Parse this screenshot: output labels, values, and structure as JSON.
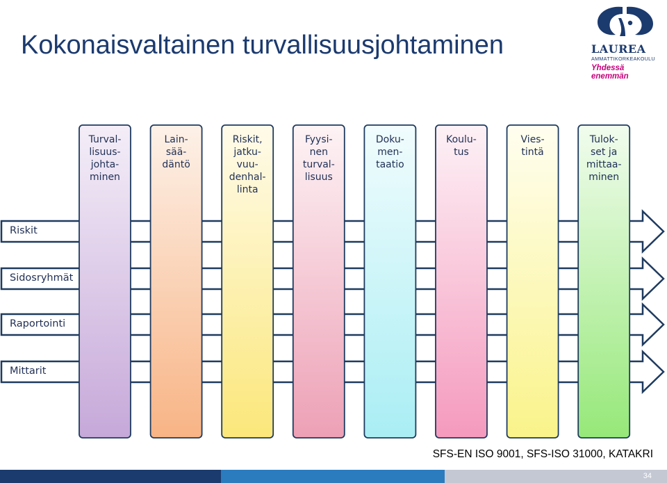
{
  "slide": {
    "title": "Kokonaisvaltainen turvallisuusjohtaminen",
    "footer_reference": "SFS-EN ISO 9001, SFS-ISO 31000, KATAKRI",
    "page_number": "34"
  },
  "logo": {
    "name": "LAUREA",
    "subtitle": "AMMATTIKORKEAKOULU",
    "slogan": "Yhdessä enemmän",
    "primary_color": "#1b3a6e",
    "slogan_color": "#c5007a"
  },
  "columns": [
    {
      "label_lines": [
        "Turval-",
        "lisuus-",
        "johta-",
        "minen"
      ],
      "color_top": "#f4eef8",
      "color_bottom": "#c6a8d9"
    },
    {
      "label_lines": [
        "Lain-",
        "sää-",
        "däntö"
      ],
      "color_top": "#fdf1e8",
      "color_bottom": "#f8b485"
    },
    {
      "label_lines": [
        "Riskit,",
        "jatku-",
        "vuu-",
        "denhal-",
        "linta"
      ],
      "color_top": "#fffbea",
      "color_bottom": "#fbe77a"
    },
    {
      "label_lines": [
        "Fyysi-",
        "nen",
        "turval-",
        "lisuus"
      ],
      "color_top": "#fdf3f5",
      "color_bottom": "#eda0b6"
    },
    {
      "label_lines": [
        "Doku-",
        "men-",
        "taatio"
      ],
      "color_top": "#f1fcfd",
      "color_bottom": "#a9eef4"
    },
    {
      "label_lines": [
        "Koulu-",
        "tus"
      ],
      "color_top": "#fdf1f6",
      "color_bottom": "#f59abd"
    },
    {
      "label_lines": [
        "Vies-",
        "tintä"
      ],
      "color_top": "#fffef0",
      "color_bottom": "#faf38a"
    },
    {
      "label_lines": [
        "Tulok-",
        "set ja",
        "mittaa-",
        "minen"
      ],
      "color_top": "#f1fcee",
      "color_bottom": "#96e879"
    }
  ],
  "rows": [
    {
      "label": "Riskit"
    },
    {
      "label": "Sidosryhmät"
    },
    {
      "label": "Raportointi"
    },
    {
      "label": "Mittarit"
    }
  ]
}
